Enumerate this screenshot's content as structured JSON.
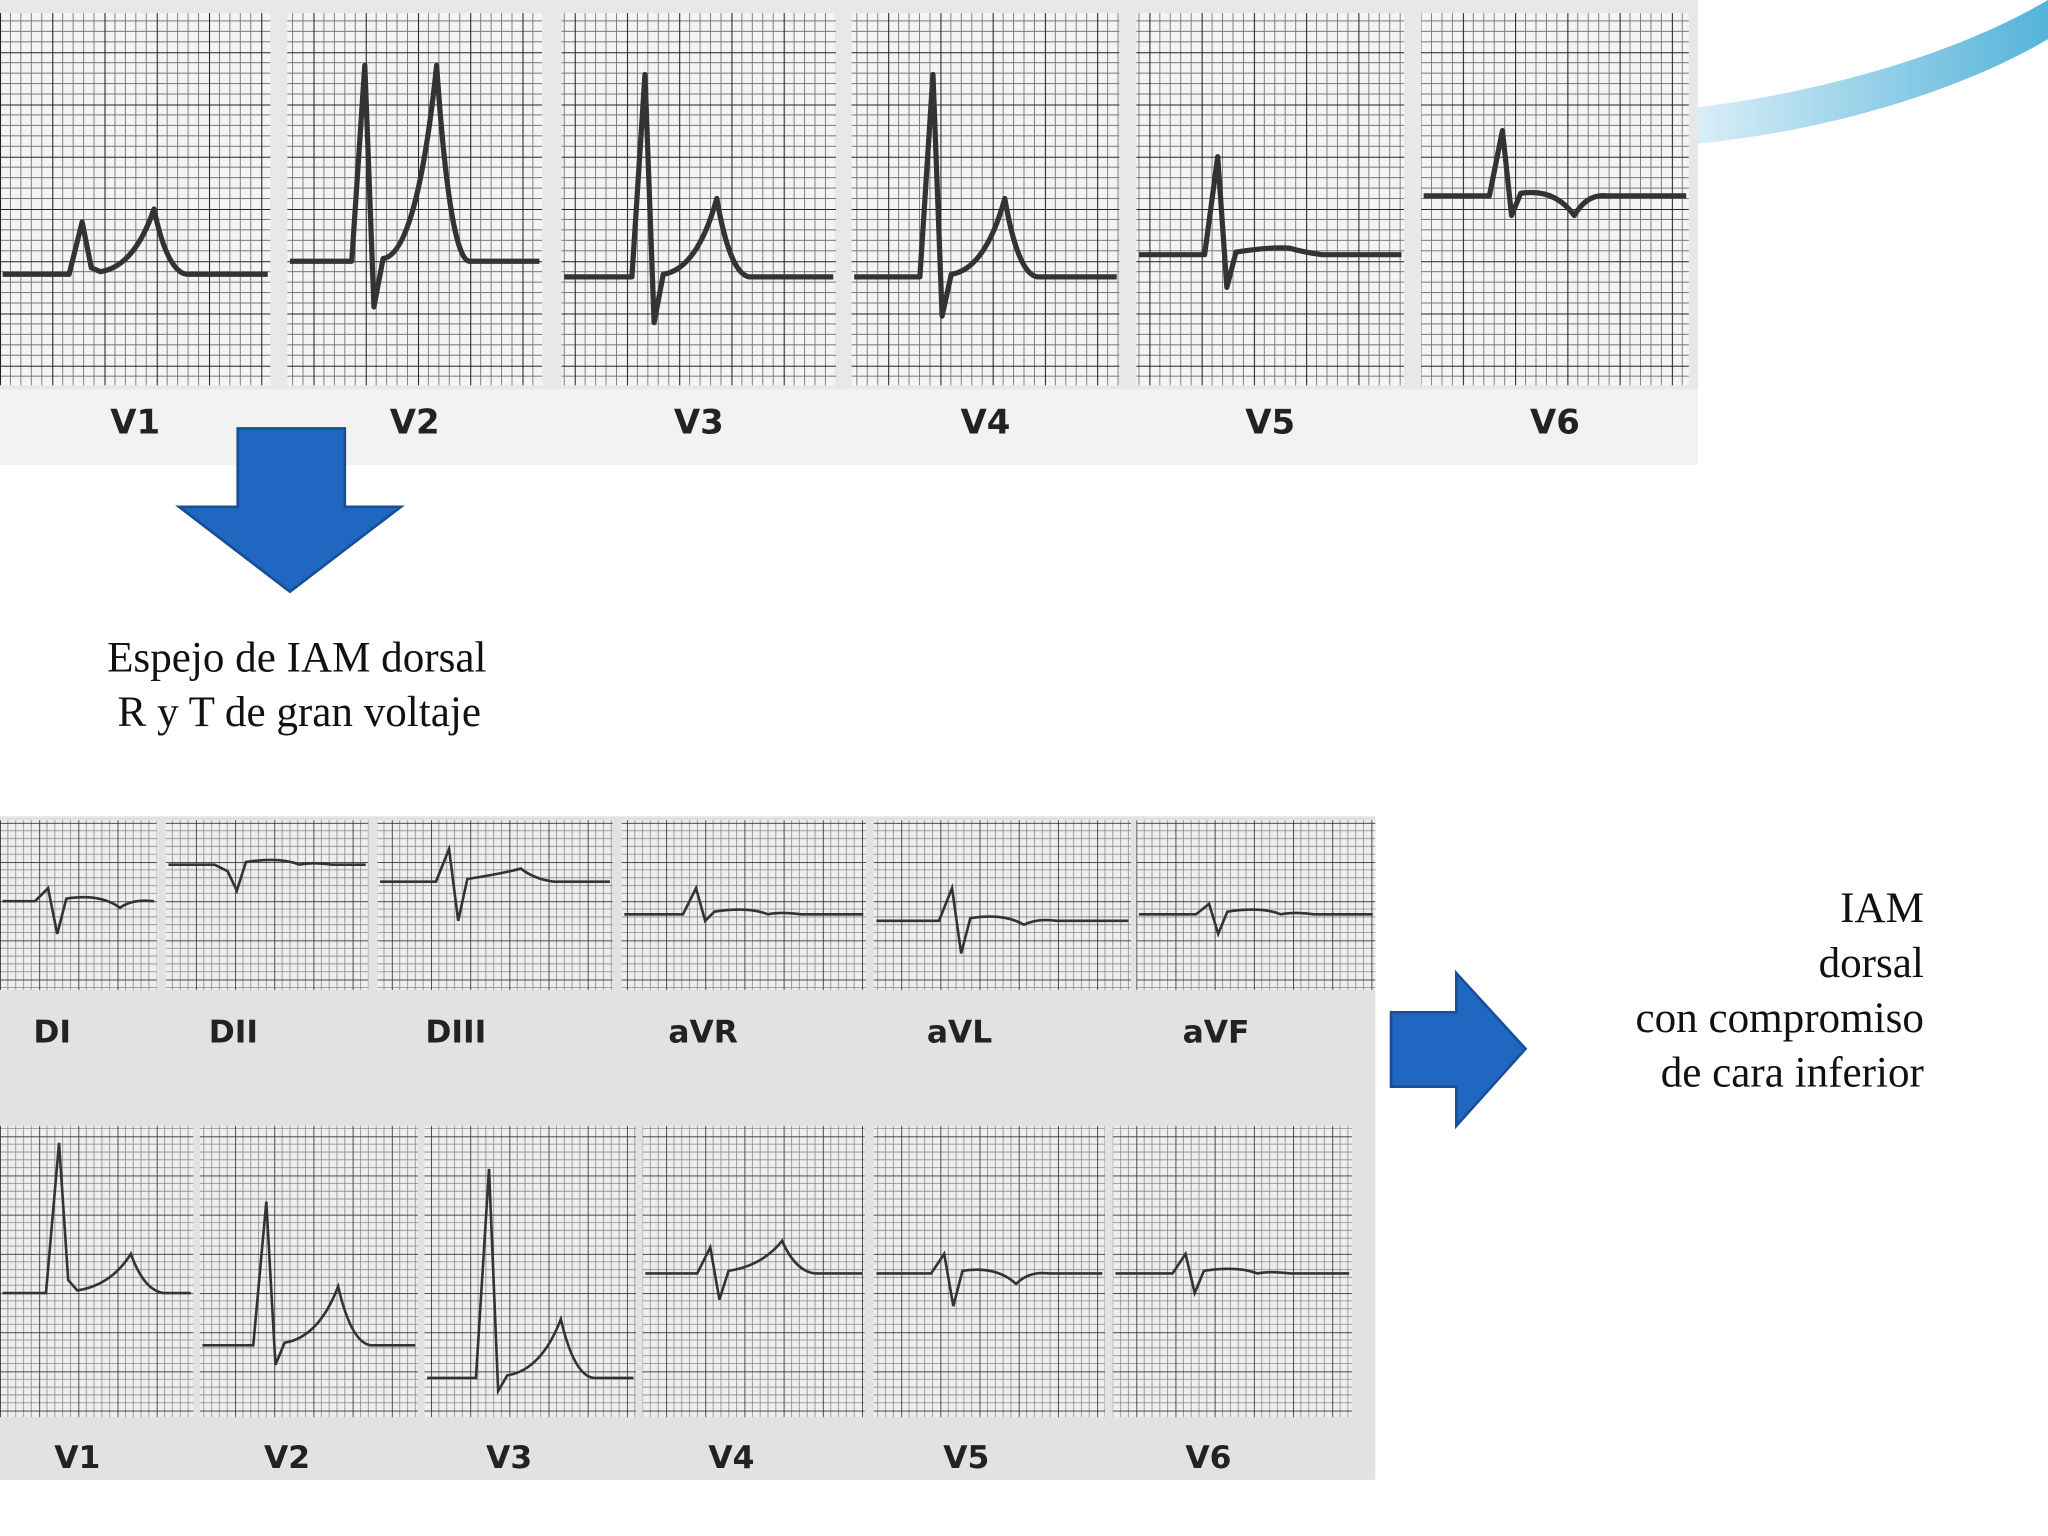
{
  "top_strip": {
    "leads": [
      "V1",
      "V2",
      "V3",
      "V4",
      "V5",
      "V6"
    ]
  },
  "caption": {
    "lines": [
      "Espejo  de IAM dorsal",
      "R y T de gran voltaje"
    ]
  },
  "bottom_strip": {
    "limb_leads": [
      "DI",
      "DII",
      "DIII",
      "aVR",
      "aVL",
      "aVF"
    ],
    "precordial_leads": [
      "V1",
      "V2",
      "V3",
      "V4",
      "V5",
      "V6"
    ]
  },
  "conclusion": {
    "lines": [
      "IAM",
      "dorsal",
      "con compromiso",
      "de cara inferior"
    ]
  }
}
